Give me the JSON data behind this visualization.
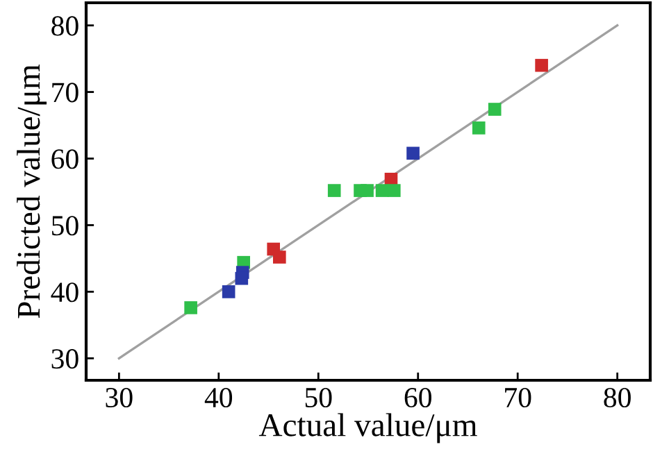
{
  "chart_data": {
    "type": "scatter",
    "xlabel": "Actual value/μm",
    "ylabel": "Predicted value/μm",
    "xlim": [
      26.7,
      83.3
    ],
    "ylim": [
      26.7,
      83.4
    ],
    "xticks": [
      30,
      40,
      50,
      60,
      70,
      80
    ],
    "yticks": [
      30,
      40,
      50,
      60,
      70,
      80
    ],
    "grid": false,
    "marker": "square",
    "series": [
      {
        "type": "line",
        "color": "#a0a0a0",
        "x": [
          30,
          80
        ],
        "values": [
          30,
          80
        ],
        "marker": "none"
      },
      {
        "color": "#d02a2a",
        "x": [
          72.4,
          57.3,
          45.5,
          46.1
        ],
        "values": [
          74.0,
          56.9,
          46.4,
          45.2
        ]
      },
      {
        "color": "#2fbf4a",
        "x": [
          67.7,
          66.1,
          51.6,
          54.2,
          54.9,
          56.4,
          57.6,
          42.5,
          37.2
        ],
        "values": [
          67.4,
          64.6,
          55.2,
          55.2,
          55.2,
          55.2,
          55.2,
          44.4,
          37.6
        ]
      },
      {
        "color": "#2a3aa8",
        "x": [
          59.5,
          42.4,
          42.3,
          41.0
        ],
        "values": [
          60.8,
          42.9,
          42.0,
          40.0
        ]
      }
    ]
  }
}
